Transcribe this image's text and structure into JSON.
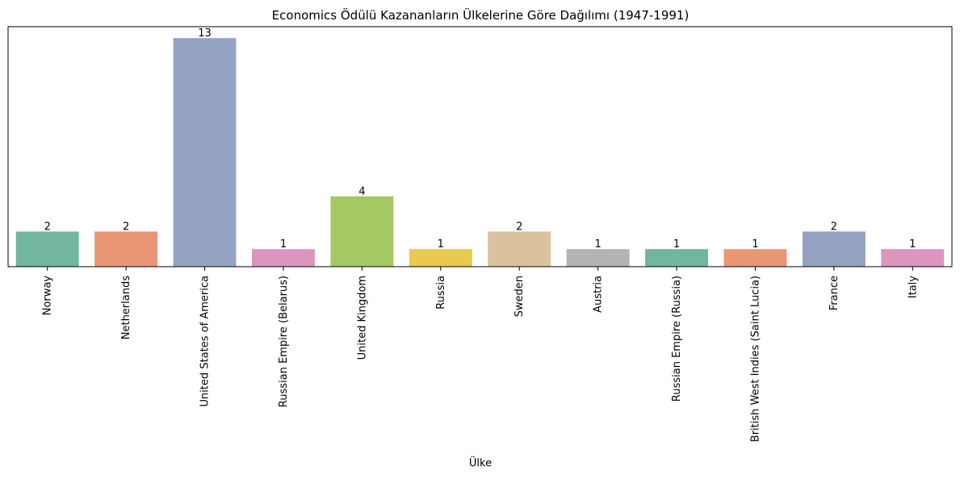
{
  "chart_data": {
    "type": "bar",
    "title": "Economics Ödülü Kazananların Ülkelerine Göre Dağılımı (1947-1991)",
    "xlabel": "Ülke",
    "ylabel": "",
    "categories": [
      "Norway",
      "Netherlands",
      "United States of America",
      "Russian Empire (Belarus)",
      "United Kingdom",
      "Russia",
      "Sweden",
      "Austria",
      "Russian Empire (Russia)",
      "British West Indies (Saint Lucia)",
      "France",
      "Italy"
    ],
    "values": [
      2,
      2,
      13,
      1,
      4,
      1,
      2,
      1,
      1,
      1,
      2,
      1
    ],
    "ylim": [
      0,
      13.65
    ],
    "grid": false,
    "legend": "none",
    "data_labels": true,
    "y_ticks_visible": false,
    "colors": [
      "#72b6a1",
      "#e99675",
      "#95a3c3",
      "#db96c0",
      "#a3c864",
      "#e8ca4f",
      "#dac29f",
      "#b3b3b3",
      "#72b6a1",
      "#e99675",
      "#95a3c3",
      "#db96c0"
    ]
  }
}
